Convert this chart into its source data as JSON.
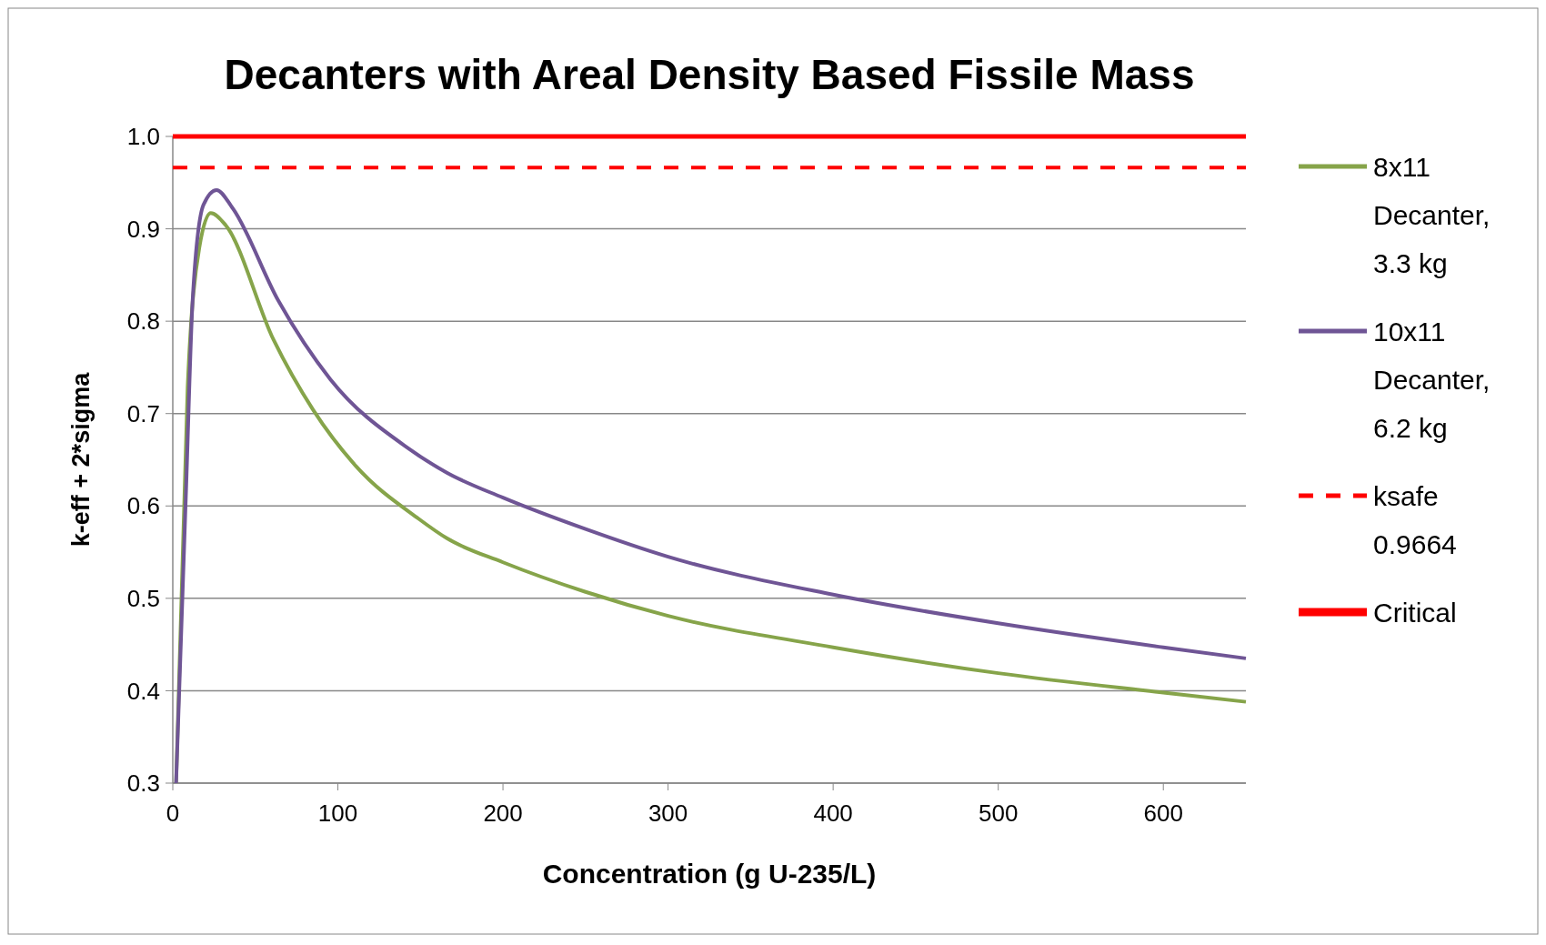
{
  "chart_data": {
    "type": "line",
    "title": "Decanters with Areal Density Based Fissile Mass",
    "xlabel": "Concentration (g U-235/L)",
    "ylabel": "k-eff + 2*sigma",
    "xlim": [
      0,
      650
    ],
    "xticks": [
      0,
      100,
      200,
      300,
      400,
      500,
      600
    ],
    "ylim": [
      0.3,
      1.0
    ],
    "yticks": [
      0.3,
      0.4,
      0.5,
      0.6,
      0.7,
      0.8,
      0.9,
      {
        "value": 1.0,
        "label": "1.0"
      }
    ],
    "grid": "y",
    "legend": "right",
    "marker": "none",
    "series": [
      {
        "name": "8x11 Decanter, 3.3 kg",
        "color": "#86a44a",
        "x": [
          2,
          9,
          16,
          23,
          32,
          61,
          85,
          111,
          149,
          166,
          200,
          250,
          300,
          400,
          500,
          600,
          650
        ],
        "values": [
          0.3,
          0.728,
          0.879,
          0.917,
          0.904,
          0.78,
          0.704,
          0.643,
          0.586,
          0.565,
          0.539,
          0.507,
          0.481,
          0.447,
          0.419,
          0.398,
          0.388
        ]
      },
      {
        "name": "10x11 Decanter, 6.2 kg",
        "color": "#6f5595",
        "x": [
          2,
          8,
          12,
          18.6,
          26.5,
          36,
          64,
          95.5,
          143,
          166,
          200,
          250,
          300,
          400,
          500,
          600,
          650
        ],
        "values": [
          0.3,
          0.615,
          0.822,
          0.926,
          0.942,
          0.923,
          0.822,
          0.737,
          0.662,
          0.636,
          0.609,
          0.575,
          0.545,
          0.504,
          0.473,
          0.447,
          0.435
        ]
      },
      {
        "name": "ksafe 0.9664",
        "color": "#ff0000",
        "line_style": "dashed",
        "x": [
          0,
          650
        ],
        "values": [
          0.9664,
          0.9664
        ]
      },
      {
        "name": "Critical",
        "color": "#ff0000",
        "line_style": "solid",
        "x": [
          0,
          650
        ],
        "values": [
          1.0,
          1.0
        ]
      }
    ]
  }
}
